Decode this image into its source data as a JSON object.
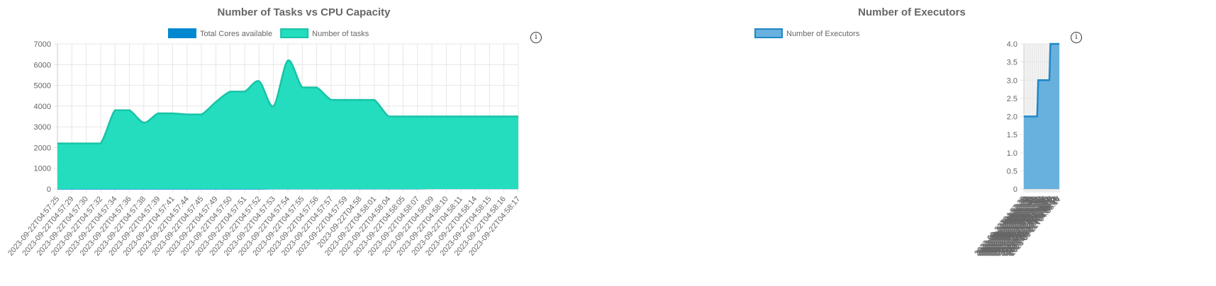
{
  "colors": {
    "cores": "#0288d1",
    "tasks_fill": "#23ddbe",
    "tasks_line": "#17c4a6",
    "exec_fill": "#68b1de",
    "exec_line": "#1f87c6",
    "grid": "#e6e6e6",
    "tick_text": "#666666"
  },
  "icons": {
    "info": "info-circle-icon",
    "info_glyph": "i"
  },
  "chart_data": [
    {
      "type": "area",
      "title": "Number of Tasks vs CPU Capacity",
      "xlabel": "",
      "ylabel": "",
      "ylim": [
        0,
        7000
      ],
      "yticks": [
        "0",
        "1000",
        "2000",
        "3000",
        "4000",
        "5000",
        "6000",
        "7000"
      ],
      "ytick_values": [
        0,
        1000,
        2000,
        3000,
        4000,
        5000,
        6000,
        7000
      ],
      "grid": true,
      "legend_position": "top",
      "x": [
        "2023-09-22T04:57:25",
        "2023-09-22T04:57:29",
        "2023-09-22T04:57:30",
        "2023-09-22T04:57:32",
        "2023-09-22T04:57:34",
        "2023-09-22T04:57:36",
        "2023-09-22T04:57:38",
        "2023-09-22T04:57:39",
        "2023-09-22T04:57:41",
        "2023-09-22T04:57:44",
        "2023-09-22T04:57:45",
        "2023-09-22T04:57:49",
        "2023-09-22T04:57:50",
        "2023-09-22T04:57:51",
        "2023-09-22T04:57:52",
        "2023-09-22T04:57:53",
        "2023-09-22T04:57:54",
        "2023-09-22T04:57:55",
        "2023-09-22T04:57:56",
        "2023-09-22T04:57:57",
        "2023-09-22T04:57:59",
        "2023-09-22T04:58",
        "2023-09-22T04:58:01",
        "2023-09-22T04:58:04",
        "2023-09-22T04:58:05",
        "2023-09-22T04:58:07",
        "2023-09-22T04:58:09",
        "2023-09-22T04:58:10",
        "2023-09-22T04:58:11",
        "2023-09-22T04:58:14",
        "2023-09-22T04:58:15",
        "2023-09-22T04:58:16",
        "2023-09-22T04:58:17"
      ],
      "series": [
        {
          "name": "Total Cores available",
          "color": "#0288d1",
          "values": [
            24,
            24,
            24,
            24,
            24,
            24,
            24,
            24,
            24,
            24,
            24,
            24,
            24,
            24,
            24,
            36,
            36,
            36,
            36,
            36,
            36,
            36,
            36,
            36,
            36,
            36,
            48,
            48,
            48,
            48,
            48,
            48,
            48
          ]
        },
        {
          "name": "Number of tasks",
          "color": "#23ddbe",
          "values": [
            2200,
            2200,
            2200,
            2200,
            3800,
            3800,
            3200,
            3650,
            3650,
            3600,
            3600,
            4200,
            4700,
            4700,
            5200,
            4000,
            6200,
            4900,
            4900,
            4300,
            4300,
            4300,
            4300,
            3500,
            3500,
            3500,
            3500,
            3500,
            3500,
            3500,
            3500,
            3500,
            3500
          ]
        }
      ]
    },
    {
      "type": "area",
      "title": "Number of Executors",
      "xlabel": "",
      "ylabel": "",
      "ylim": [
        0,
        4
      ],
      "yticks": [
        "0",
        "0.5",
        "1.0",
        "1.5",
        "2.0",
        "2.5",
        "3.0",
        "3.5",
        "4.0"
      ],
      "ytick_values": [
        0,
        0.5,
        1,
        1.5,
        2,
        2.5,
        3,
        3.5,
        4
      ],
      "grid": true,
      "legend_position": "top",
      "x": [
        "2023-09-22T04:57:25",
        "2023-09-22T04:57:29",
        "2023-09-22T04:57:30",
        "2023-09-22T04:57:32",
        "2023-09-22T04:57:34",
        "2023-09-22T04:57:36",
        "2023-09-22T04:57:38",
        "2023-09-22T04:57:39",
        "2023-09-22T04:57:41",
        "2023-09-22T04:57:44",
        "2023-09-22T04:57:45",
        "2023-09-22T04:57:49",
        "2023-09-22T04:57:50",
        "2023-09-22T04:57:51",
        "2023-09-22T04:57:52",
        "2023-09-22T04:57:53",
        "2023-09-22T04:57:54",
        "2023-09-22T04:57:55",
        "2023-09-22T04:57:56",
        "2023-09-22T04:57:57",
        "2023-09-22T04:57:59",
        "2023-09-22T04:58",
        "2023-09-22T04:58:01",
        "2023-09-22T04:58:04",
        "2023-09-22T04:58:05",
        "2023-09-22T04:58:07",
        "2023-09-22T04:58:09",
        "2023-09-22T04:58:10",
        "2023-09-22T04:58:11",
        "2023-09-22T04:58:14",
        "2023-09-22T04:58:15",
        "2023-09-22T04:58:16",
        "2023-09-22T04:58:17"
      ],
      "series": [
        {
          "name": "Number of Executors",
          "color": "#68b1de",
          "values": [
            2,
            2,
            2,
            2,
            2,
            2,
            2,
            2,
            2,
            2,
            2,
            2,
            2,
            3,
            3,
            3,
            3,
            3,
            3,
            3,
            3,
            3,
            3,
            3,
            4,
            4,
            4,
            4,
            4,
            4,
            4,
            4,
            4
          ]
        }
      ]
    }
  ]
}
